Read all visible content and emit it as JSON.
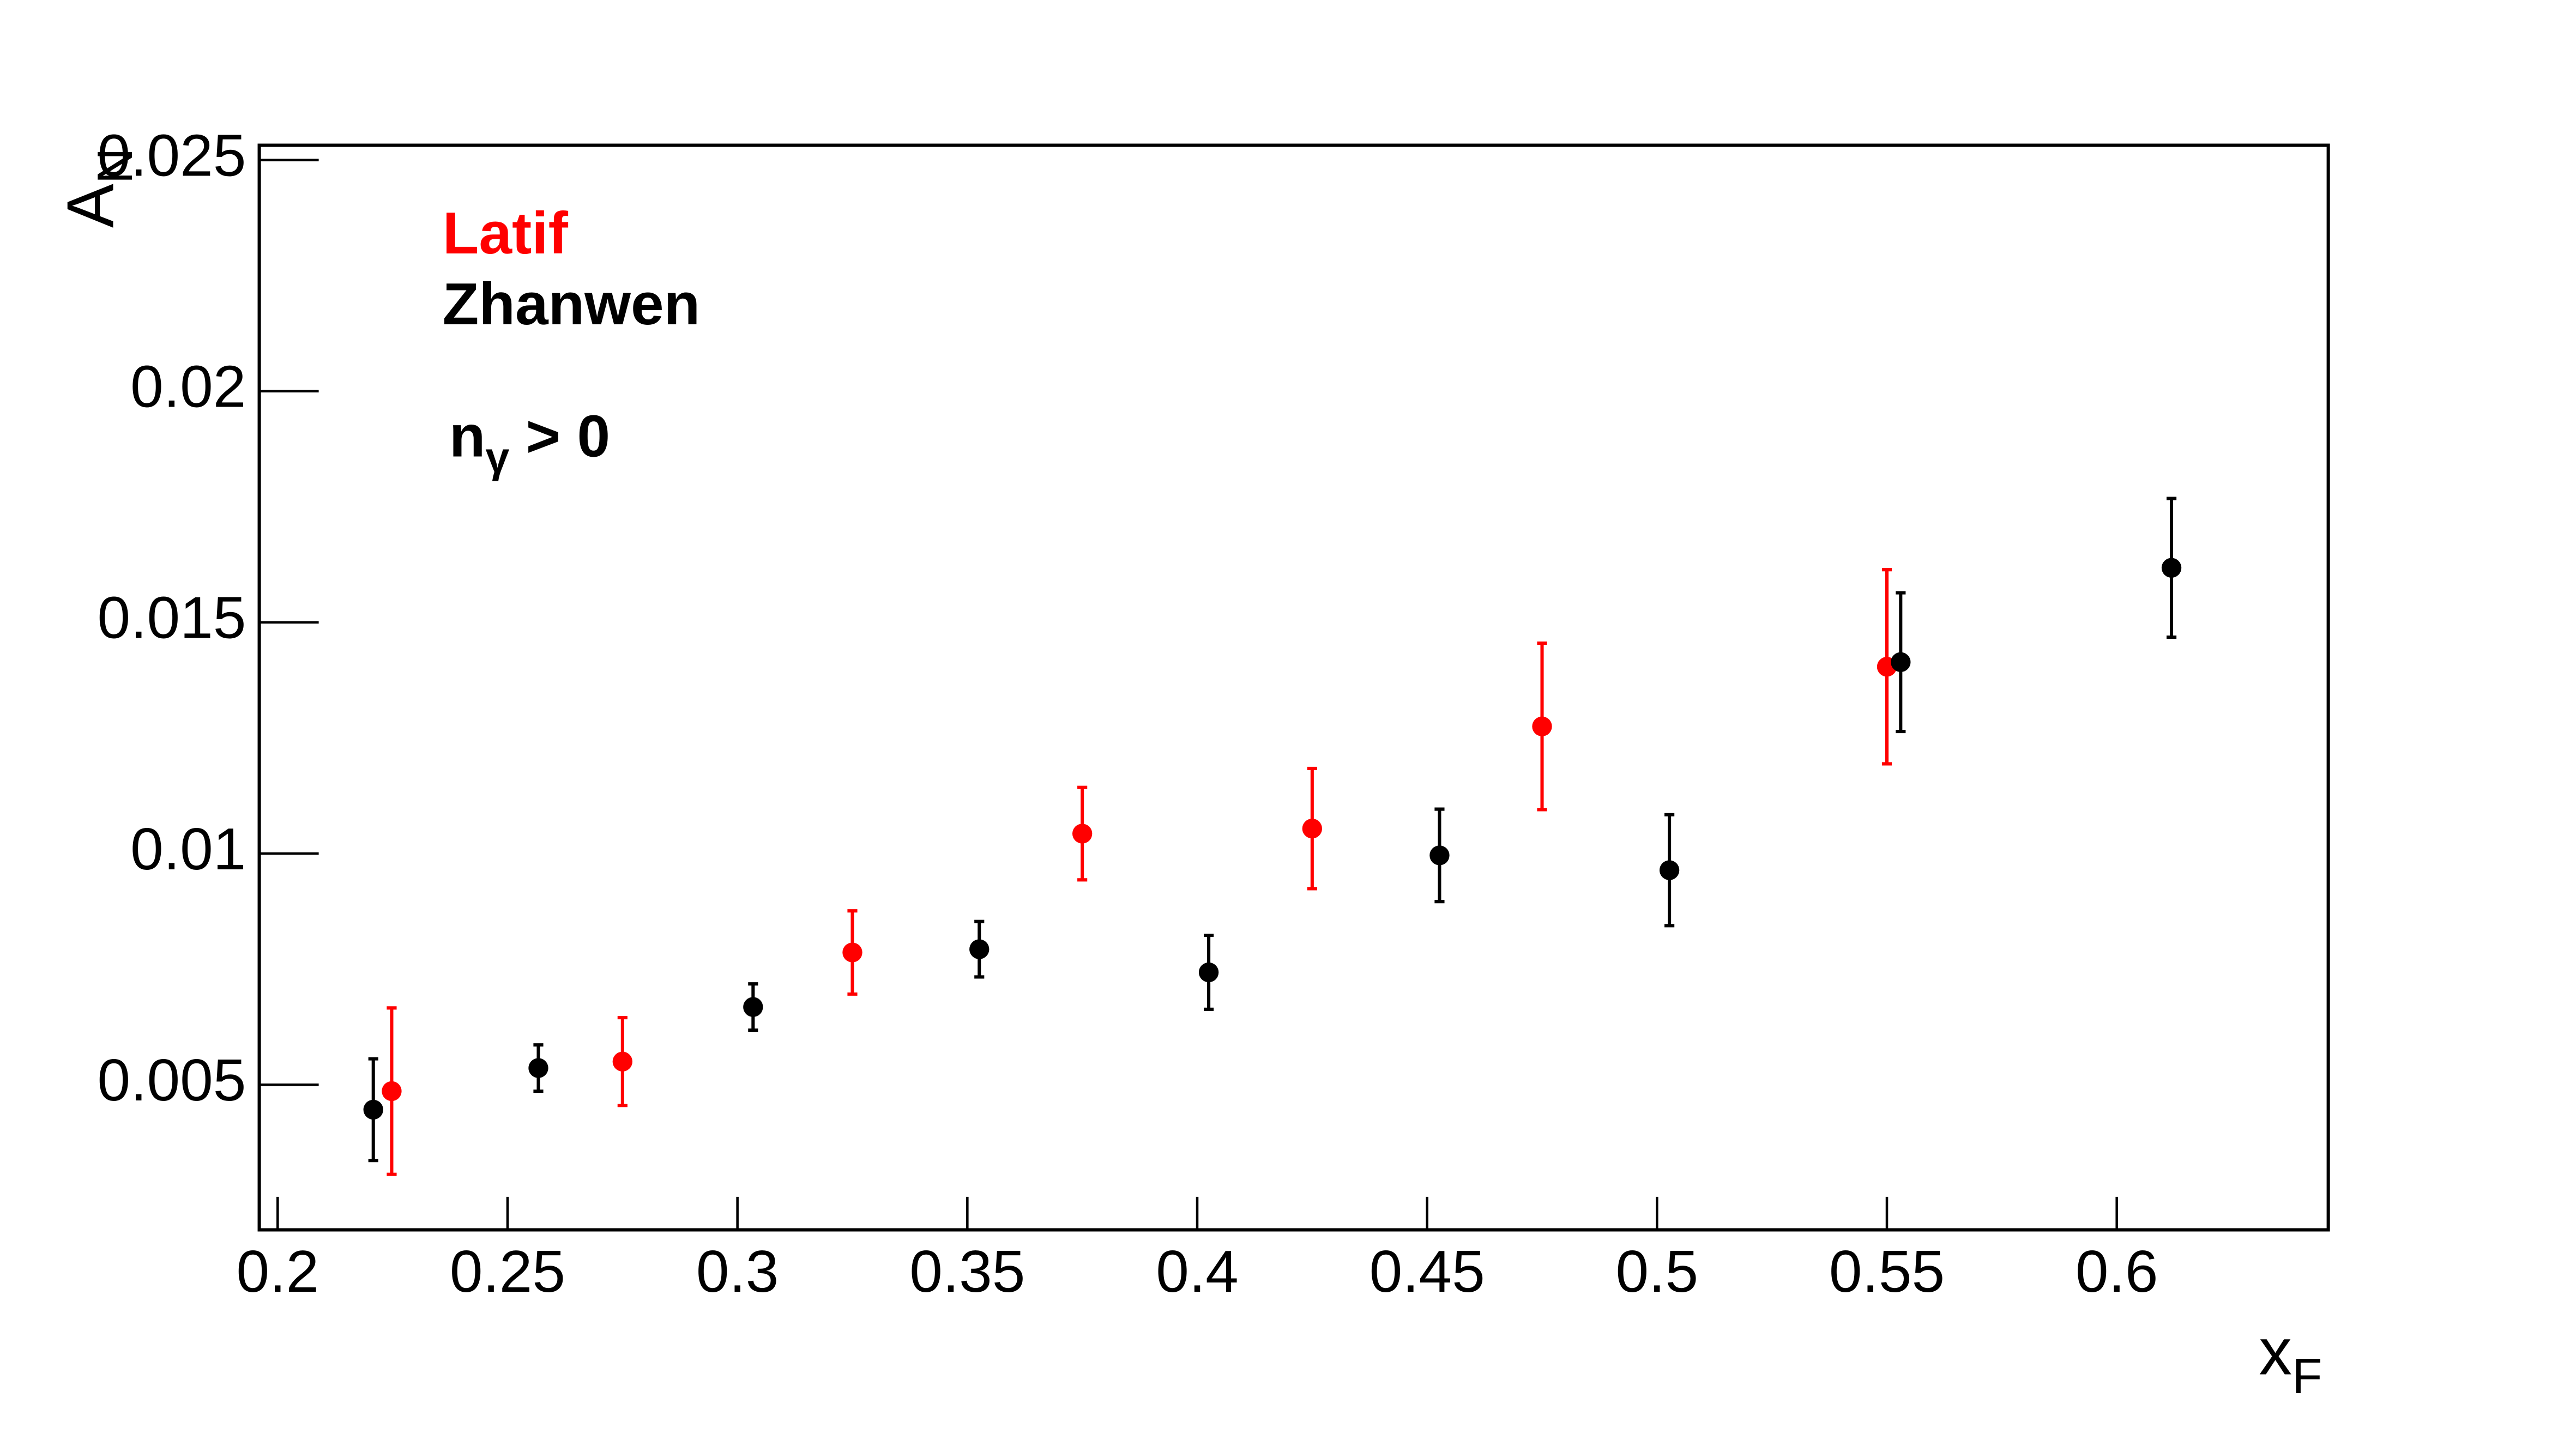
{
  "chart_data": {
    "type": "errorbar_scatter",
    "x_label": {
      "main": "x",
      "sub": "F"
    },
    "y_label": {
      "main": "A",
      "sub": "N"
    },
    "annotation": {
      "main": "n",
      "sub": "γ",
      "rest": " > 0"
    },
    "xlim": [
      0.196,
      0.646
    ],
    "ylim": [
      0.00186,
      0.02532
    ],
    "xticks": [
      0.2,
      0.25,
      0.3,
      0.35,
      0.4,
      0.45,
      0.5,
      0.55,
      0.6
    ],
    "yticks": [
      0.005,
      0.01,
      0.015,
      0.02,
      0.025
    ],
    "grid": false,
    "series": [
      {
        "name": "Latif",
        "color": "#ff0000",
        "x": [
          0.2248,
          0.275,
          0.325,
          0.375,
          0.425,
          0.475,
          0.55
        ],
        "values": [
          0.00486,
          0.0055,
          0.00786,
          0.01043,
          0.01054,
          0.01275,
          0.01404
        ],
        "errors": [
          0.0018,
          0.00095,
          0.0009,
          0.001,
          0.0013,
          0.0018,
          0.0021
        ]
      },
      {
        "name": "Zhanwen",
        "color": "#000000",
        "x": [
          0.2208,
          0.2567,
          0.3034,
          0.3526,
          0.4025,
          0.4527,
          0.5027,
          0.553,
          0.6119
        ],
        "values": [
          0.00446,
          0.00536,
          0.00668,
          0.00793,
          0.00743,
          0.00996,
          0.00964,
          0.01414,
          0.01618
        ],
        "errors": [
          0.0011,
          0.0005,
          0.0005,
          0.0006,
          0.0008,
          0.001,
          0.0012,
          0.0015,
          0.0015
        ]
      }
    ]
  }
}
